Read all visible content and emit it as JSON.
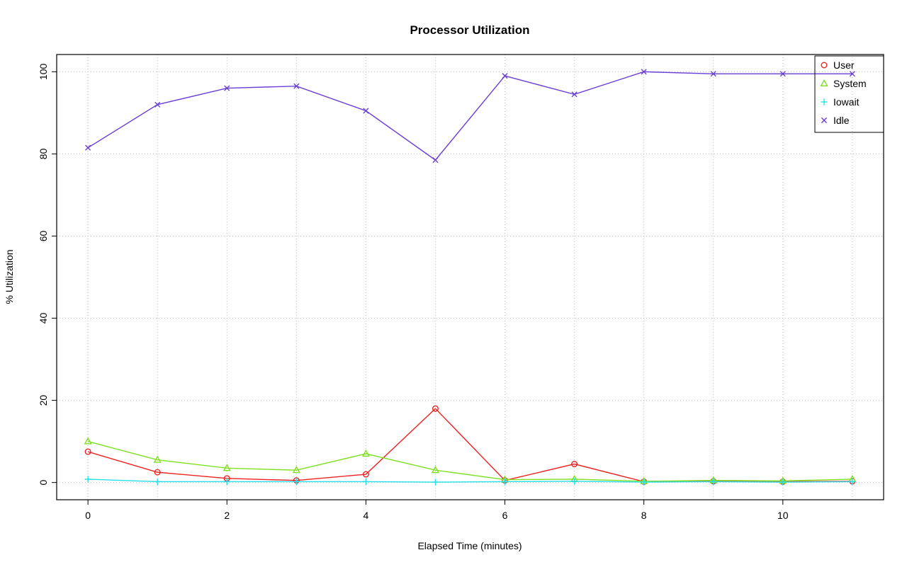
{
  "chart_data": {
    "type": "line",
    "title": "Processor Utilization",
    "xlabel": "Elapsed Time (minutes)",
    "ylabel": "% Utilization",
    "x": [
      0,
      1,
      2,
      3,
      4,
      5,
      6,
      7,
      8,
      9,
      10,
      11
    ],
    "xlim": [
      -0.45,
      11.45
    ],
    "ylim": [
      -4.2,
      104.2
    ],
    "xticks": [
      0,
      2,
      4,
      6,
      8,
      10
    ],
    "yticks": [
      0,
      20,
      40,
      60,
      80,
      100
    ],
    "grid": true,
    "grid_style": "dotted",
    "grid_color": "#bdbdbd",
    "legend_position": "top-right",
    "series": [
      {
        "name": "User",
        "color": "#ee2222",
        "marker": "circle",
        "values": [
          7.5,
          2.5,
          1.0,
          0.5,
          2.0,
          18.0,
          0.5,
          4.5,
          0.2,
          0.3,
          0.2,
          0.3
        ]
      },
      {
        "name": "System",
        "color": "#7fe020",
        "marker": "triangle",
        "values": [
          10.0,
          5.5,
          3.5,
          3.0,
          7.0,
          3.0,
          0.7,
          0.8,
          0.3,
          0.5,
          0.4,
          0.8
        ]
      },
      {
        "name": "Iowait",
        "color": "#25dfe8",
        "marker": "plus",
        "values": [
          0.8,
          0.2,
          0.2,
          0.2,
          0.2,
          0.1,
          0.2,
          0.3,
          0.1,
          0.2,
          0.1,
          0.2
        ]
      },
      {
        "name": "Idle",
        "color": "#6a3fd8",
        "marker": "x",
        "values": [
          81.5,
          92.0,
          96.0,
          96.5,
          90.5,
          78.5,
          99.0,
          94.5,
          100.0,
          99.5,
          99.5,
          99.5
        ]
      }
    ]
  }
}
